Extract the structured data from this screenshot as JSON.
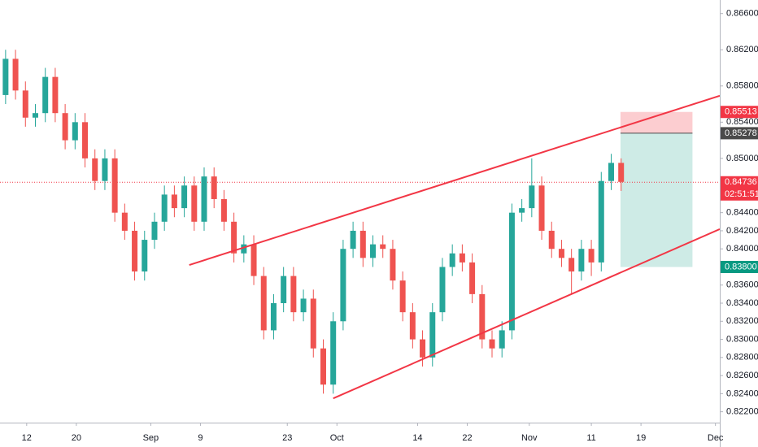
{
  "chart_data": {
    "type": "candlestick",
    "x": [
      219,
      220.6,
      222.2,
      223.8,
      225.4,
      227,
      228.6,
      230.2,
      231.8,
      233.4,
      235,
      236.6,
      238.2,
      239.8,
      241.4,
      243,
      244.6,
      246.2,
      247.8,
      249.4,
      251,
      252.6,
      254.2,
      255.8,
      257.4,
      259,
      260.6,
      262.2,
      263.8,
      265.4,
      267,
      268.6,
      270.2,
      271.8,
      273.4,
      275,
      276.6,
      278.2,
      279.8,
      281.4,
      283,
      284.6,
      286.2,
      287.8,
      289.4,
      291,
      292.6,
      294.2,
      295.8,
      297.4,
      299,
      300.6,
      302.2,
      303.8,
      305.4,
      307,
      308.6,
      310.2,
      311.8,
      313.4,
      315,
      316.6,
      318.2,
      319.8
    ],
    "open": [
      0.856,
      0.857,
      0.861,
      0.8575,
      0.8545,
      0.855,
      0.859,
      0.855,
      0.852,
      0.854,
      0.85,
      0.8475,
      0.85,
      0.844,
      0.842,
      0.8375,
      0.841,
      0.843,
      0.846,
      0.8445,
      0.847,
      0.843,
      0.848,
      0.8455,
      0.843,
      0.8395,
      0.8405,
      0.837,
      0.831,
      0.834,
      0.837,
      0.833,
      0.8345,
      0.829,
      0.825,
      0.832,
      0.84,
      0.842,
      0.839,
      0.8405,
      0.84,
      0.8365,
      0.833,
      0.83,
      0.828,
      0.833,
      0.838,
      0.8395,
      0.8385,
      0.835,
      0.83,
      0.829,
      0.831,
      0.844,
      0.8445,
      0.847,
      0.842,
      0.84,
      0.839,
      0.8375,
      0.84,
      0.8385,
      0.8475,
      0.8495
    ],
    "high": [
      0.858,
      0.862,
      0.862,
      0.8585,
      0.856,
      0.86,
      0.86,
      0.856,
      0.855,
      0.855,
      0.851,
      0.851,
      0.851,
      0.845,
      0.843,
      0.842,
      0.844,
      0.847,
      0.847,
      0.848,
      0.848,
      0.849,
      0.849,
      0.8465,
      0.844,
      0.8415,
      0.8415,
      0.838,
      0.835,
      0.838,
      0.838,
      0.8355,
      0.8355,
      0.83,
      0.833,
      0.841,
      0.843,
      0.843,
      0.8415,
      0.8415,
      0.841,
      0.8375,
      0.834,
      0.831,
      0.834,
      0.839,
      0.8405,
      0.8405,
      0.8395,
      0.836,
      0.831,
      0.832,
      0.845,
      0.8455,
      0.85,
      0.848,
      0.843,
      0.841,
      0.84,
      0.841,
      0.841,
      0.8485,
      0.8505,
      0.85
    ],
    "low": [
      0.855,
      0.856,
      0.8565,
      0.8535,
      0.8535,
      0.854,
      0.854,
      0.851,
      0.851,
      0.849,
      0.8465,
      0.8465,
      0.843,
      0.841,
      0.8365,
      0.8365,
      0.84,
      0.842,
      0.8435,
      0.8435,
      0.842,
      0.842,
      0.8445,
      0.842,
      0.8385,
      0.8385,
      0.836,
      0.83,
      0.83,
      0.833,
      0.832,
      0.832,
      0.828,
      0.824,
      0.824,
      0.831,
      0.839,
      0.838,
      0.838,
      0.839,
      0.8355,
      0.832,
      0.829,
      0.827,
      0.827,
      0.832,
      0.837,
      0.8375,
      0.834,
      0.829,
      0.828,
      0.828,
      0.83,
      0.843,
      0.8435,
      0.841,
      0.839,
      0.838,
      0.835,
      0.8365,
      0.837,
      0.8375,
      0.8465,
      0.8464
    ],
    "close": [
      0.857,
      0.861,
      0.8575,
      0.8545,
      0.855,
      0.859,
      0.855,
      0.852,
      0.854,
      0.85,
      0.8475,
      0.85,
      0.844,
      0.842,
      0.8375,
      0.841,
      0.843,
      0.846,
      0.8445,
      0.847,
      0.843,
      0.848,
      0.8455,
      0.843,
      0.8395,
      0.8405,
      0.837,
      0.831,
      0.834,
      0.837,
      0.833,
      0.8345,
      0.829,
      0.825,
      0.832,
      0.84,
      0.842,
      0.839,
      0.8405,
      0.84,
      0.8365,
      0.833,
      0.83,
      0.828,
      0.833,
      0.838,
      0.8395,
      0.8385,
      0.835,
      0.83,
      0.829,
      0.831,
      0.844,
      0.8445,
      0.847,
      0.842,
      0.84,
      0.839,
      0.8375,
      0.84,
      0.8385,
      0.8475,
      0.8495,
      0.8474
    ],
    "up_color": "#26a69a",
    "down_color": "#ef5350",
    "xlim": [
      219.7,
      335.7
    ],
    "ylim": [
      0.8208,
      0.8675
    ],
    "grid": false,
    "xticks": [
      {
        "value": 224,
        "label": "12"
      },
      {
        "value": 232,
        "label": "20"
      },
      {
        "value": 244,
        "label": "Sep"
      },
      {
        "value": 252,
        "label": "9"
      },
      {
        "value": 266,
        "label": "23"
      },
      {
        "value": 274,
        "label": "Oct"
      },
      {
        "value": 287,
        "label": "14"
      },
      {
        "value": 295,
        "label": "22"
      },
      {
        "value": 305,
        "label": "Nov"
      },
      {
        "value": 315,
        "label": "11"
      },
      {
        "value": 323,
        "label": "19"
      },
      {
        "value": 335,
        "label": "Dec"
      }
    ],
    "yticks": [
      {
        "value": 0.866,
        "label": "0.86600"
      },
      {
        "value": 0.862,
        "label": "0.86200"
      },
      {
        "value": 0.858,
        "label": "0.85800"
      },
      {
        "value": 0.854,
        "label": "0.85400"
      },
      {
        "value": 0.85,
        "label": "0.85000"
      },
      {
        "value": 0.844,
        "label": "0.84400"
      },
      {
        "value": 0.842,
        "label": "0.84200"
      },
      {
        "value": 0.84,
        "label": "0.84000"
      },
      {
        "value": 0.836,
        "label": "0.83600"
      },
      {
        "value": 0.834,
        "label": "0.83400"
      },
      {
        "value": 0.832,
        "label": "0.83200"
      },
      {
        "value": 0.83,
        "label": "0.83000"
      },
      {
        "value": 0.828,
        "label": "0.82800"
      },
      {
        "value": 0.826,
        "label": "0.82600"
      },
      {
        "value": 0.824,
        "label": "0.82400"
      },
      {
        "value": 0.822,
        "label": "0.82200"
      }
    ],
    "trendlines": [
      {
        "x": [
          250.2,
          335.7
        ],
        "y": [
          0.83822,
          0.85692
        ],
        "color": "#f23645"
      },
      {
        "x": [
          273.4,
          335.7
        ],
        "y": [
          0.82348,
          0.84218
        ],
        "color": "#f23645"
      }
    ],
    "position": {
      "x": [
        319.7,
        331.3
      ],
      "stop": 0.85513,
      "entry": 0.85278,
      "target": {
        "value": 0.838,
        "label": "0.83800"
      },
      "stop_color": "#f23645",
      "entry_color": "#4a4a4a",
      "target_color": "#089981"
    },
    "last_price": 0.84736,
    "last_color": "#f23645",
    "countdown": "02:51:51"
  }
}
